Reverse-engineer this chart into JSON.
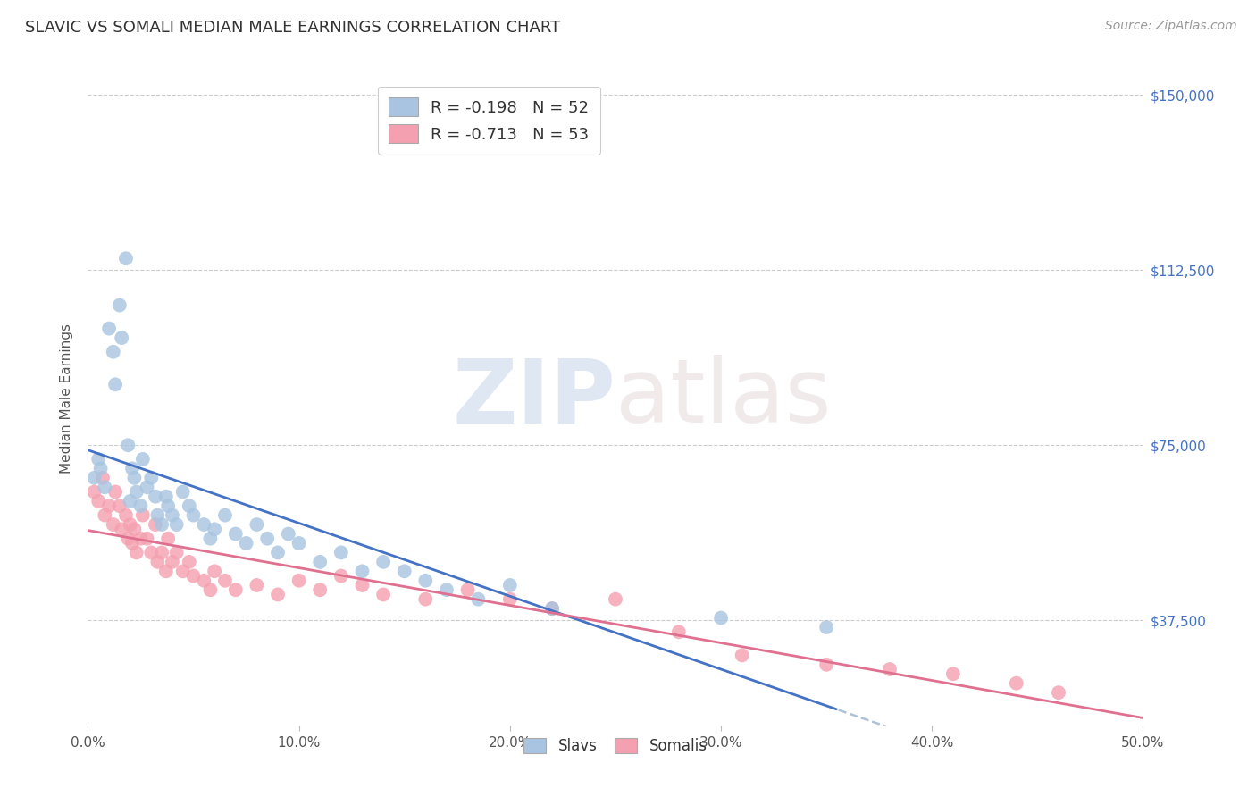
{
  "title": "SLAVIC VS SOMALI MEDIAN MALE EARNINGS CORRELATION CHART",
  "source": "Source: ZipAtlas.com",
  "ylabel": "Median Male Earnings",
  "xlabel_ticks": [
    "0.0%",
    "10.0%",
    "20.0%",
    "30.0%",
    "40.0%",
    "50.0%"
  ],
  "xlabel_vals": [
    0.0,
    0.1,
    0.2,
    0.3,
    0.4,
    0.5
  ],
  "ylabel_ticks": [
    "$37,500",
    "$75,000",
    "$112,500",
    "$150,000"
  ],
  "ylabel_vals": [
    37500,
    75000,
    112500,
    150000
  ],
  "xlim": [
    0.0,
    0.5
  ],
  "ylim": [
    15000,
    155000
  ],
  "slavs_color": "#a8c4e0",
  "somali_color": "#f4a0b0",
  "slavs_line_color": "#4472c4",
  "somali_line_color": "#e07090",
  "dashed_line_color": "#a0b8d0",
  "R_slavs": -0.198,
  "N_slavs": 52,
  "R_somali": -0.713,
  "N_somali": 53,
  "legend_label_slavs": "Slavs",
  "legend_label_somali": "Somalis",
  "watermark_zip": "ZIP",
  "watermark_atlas": "atlas",
  "background_color": "#ffffff",
  "grid_color": "#cccccc",
  "title_color": "#333333",
  "axis_label_color": "#555555",
  "right_tick_color": "#4472c4",
  "slavs_x": [
    0.003,
    0.005,
    0.006,
    0.008,
    0.01,
    0.012,
    0.013,
    0.015,
    0.016,
    0.018,
    0.019,
    0.02,
    0.021,
    0.022,
    0.023,
    0.025,
    0.026,
    0.028,
    0.03,
    0.032,
    0.033,
    0.035,
    0.037,
    0.038,
    0.04,
    0.042,
    0.045,
    0.048,
    0.05,
    0.055,
    0.058,
    0.06,
    0.065,
    0.07,
    0.075,
    0.08,
    0.085,
    0.09,
    0.095,
    0.1,
    0.11,
    0.12,
    0.13,
    0.14,
    0.15,
    0.16,
    0.17,
    0.185,
    0.2,
    0.22,
    0.3,
    0.35
  ],
  "slavs_y": [
    68000,
    72000,
    70000,
    66000,
    100000,
    95000,
    88000,
    105000,
    98000,
    115000,
    75000,
    63000,
    70000,
    68000,
    65000,
    62000,
    72000,
    66000,
    68000,
    64000,
    60000,
    58000,
    64000,
    62000,
    60000,
    58000,
    65000,
    62000,
    60000,
    58000,
    55000,
    57000,
    60000,
    56000,
    54000,
    58000,
    55000,
    52000,
    56000,
    54000,
    50000,
    52000,
    48000,
    50000,
    48000,
    46000,
    44000,
    42000,
    45000,
    40000,
    38000,
    36000
  ],
  "somali_x": [
    0.003,
    0.005,
    0.007,
    0.008,
    0.01,
    0.012,
    0.013,
    0.015,
    0.016,
    0.018,
    0.019,
    0.02,
    0.021,
    0.022,
    0.023,
    0.025,
    0.026,
    0.028,
    0.03,
    0.032,
    0.033,
    0.035,
    0.037,
    0.038,
    0.04,
    0.042,
    0.045,
    0.048,
    0.05,
    0.055,
    0.058,
    0.06,
    0.065,
    0.07,
    0.08,
    0.09,
    0.1,
    0.11,
    0.12,
    0.13,
    0.14,
    0.16,
    0.18,
    0.2,
    0.22,
    0.25,
    0.28,
    0.31,
    0.35,
    0.38,
    0.41,
    0.44,
    0.46
  ],
  "somali_y": [
    65000,
    63000,
    68000,
    60000,
    62000,
    58000,
    65000,
    62000,
    57000,
    60000,
    55000,
    58000,
    54000,
    57000,
    52000,
    55000,
    60000,
    55000,
    52000,
    58000,
    50000,
    52000,
    48000,
    55000,
    50000,
    52000,
    48000,
    50000,
    47000,
    46000,
    44000,
    48000,
    46000,
    44000,
    45000,
    43000,
    46000,
    44000,
    47000,
    45000,
    43000,
    42000,
    44000,
    42000,
    40000,
    42000,
    35000,
    30000,
    28000,
    27000,
    26000,
    24000,
    22000
  ]
}
